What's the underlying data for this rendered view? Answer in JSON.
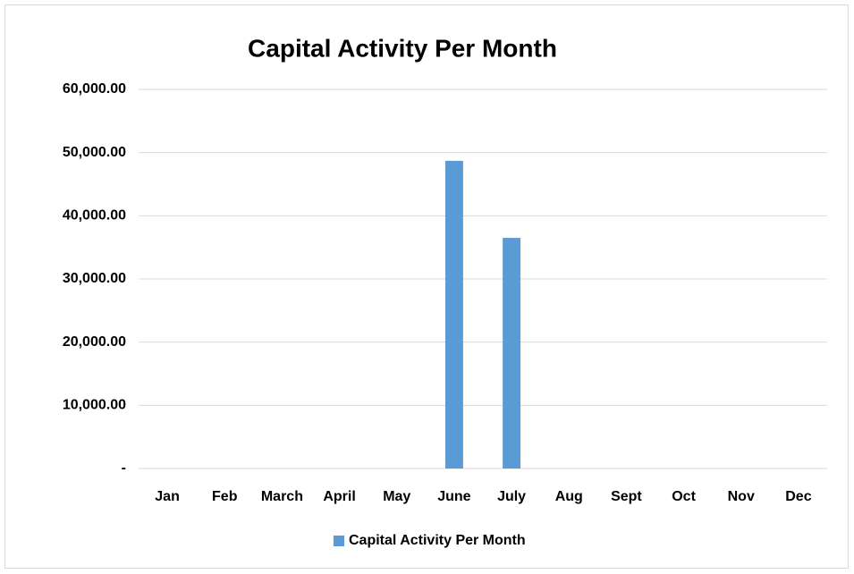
{
  "chart_data": {
    "type": "bar",
    "title": "Capital Activity Per Month",
    "categories": [
      "Jan",
      "Feb",
      "March",
      "April",
      "May",
      "June",
      "July",
      "Aug",
      "Sept",
      "Oct",
      "Nov",
      "Dec"
    ],
    "series": [
      {
        "name": "Capital Activity Per Month",
        "color": "#5b9bd5",
        "values": [
          0,
          0,
          0,
          0,
          0,
          48700,
          36500,
          0,
          0,
          0,
          0,
          0
        ]
      }
    ],
    "ylim": [
      0,
      60000
    ],
    "yticks": [
      {
        "value": 0,
        "label": "-"
      },
      {
        "value": 10000,
        "label": "10,000.00"
      },
      {
        "value": 20000,
        "label": "20,000.00"
      },
      {
        "value": 30000,
        "label": "30,000.00"
      },
      {
        "value": 40000,
        "label": "40,000.00"
      },
      {
        "value": 50000,
        "label": "50,000.00"
      },
      {
        "value": 60000,
        "label": "60,000.00"
      }
    ],
    "grid": true,
    "legend": "bottom"
  }
}
